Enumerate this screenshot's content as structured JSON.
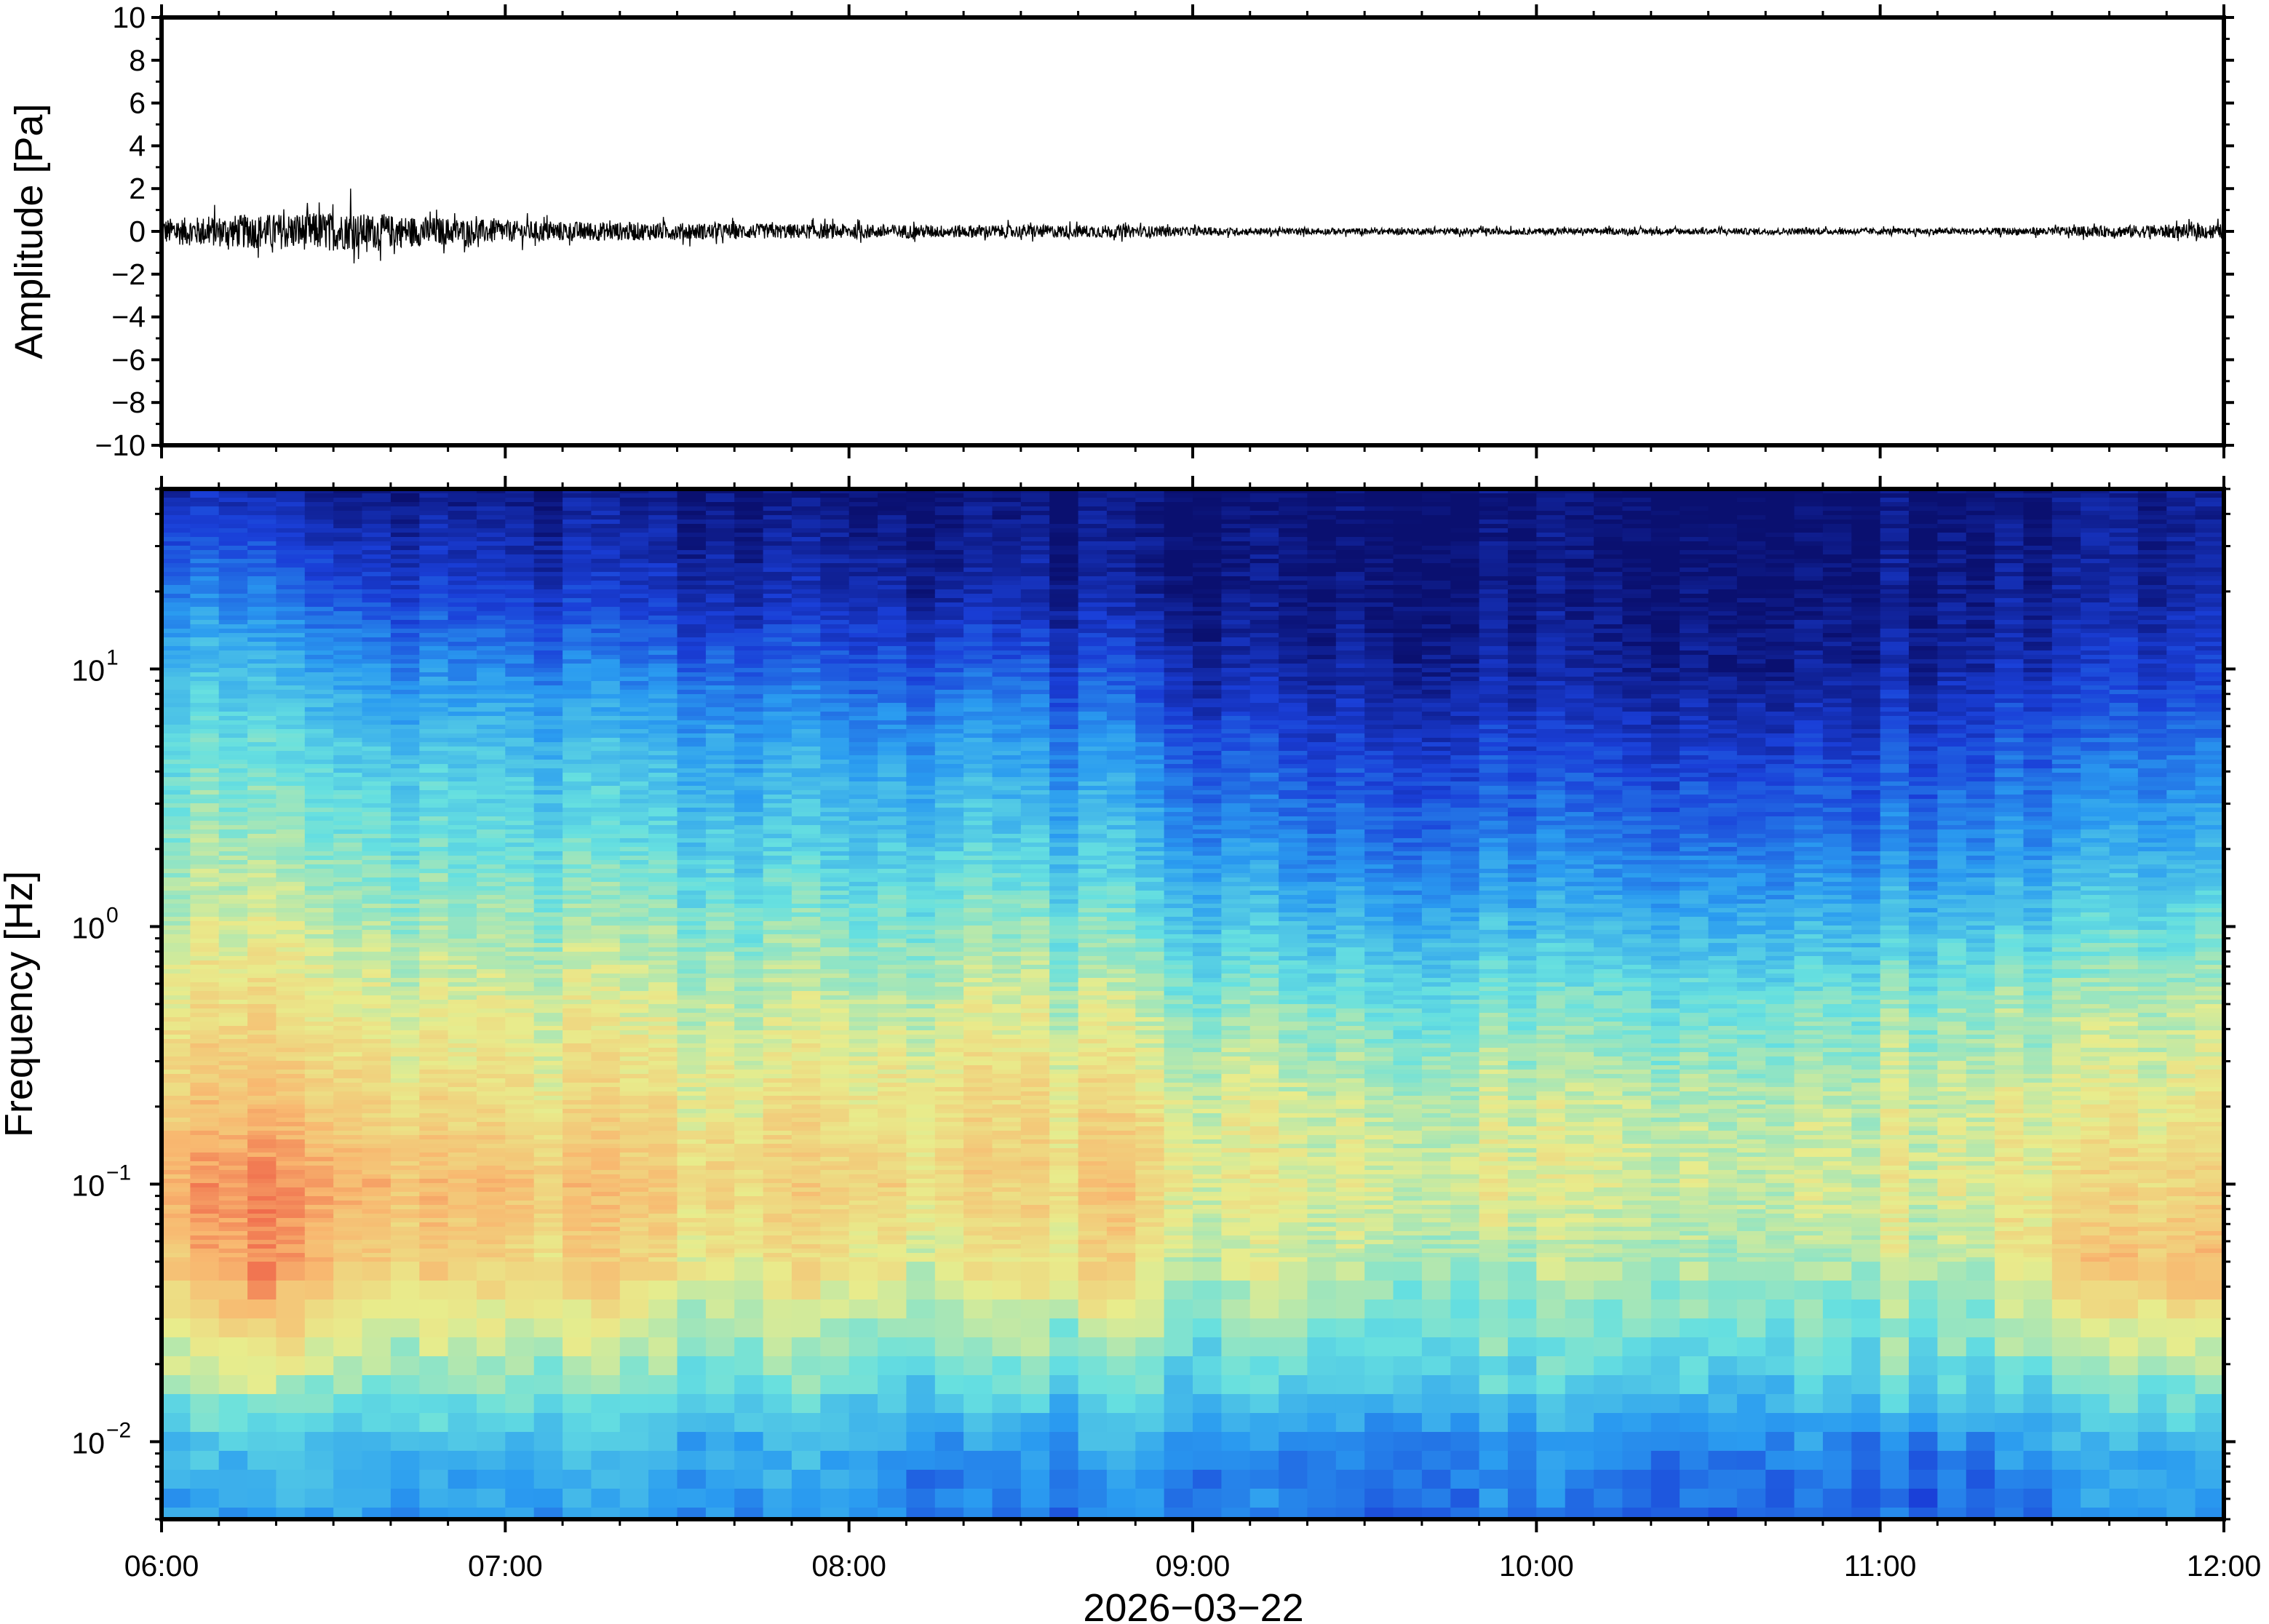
{
  "chart_data": [
    {
      "type": "line",
      "ylabel": "Amplitude [Pa]",
      "ylim": [
        -10,
        10
      ],
      "yticks": [
        {
          "value": 10,
          "label": "10"
        },
        {
          "value": 8,
          "label": "8"
        },
        {
          "value": 6,
          "label": "6"
        },
        {
          "value": 4,
          "label": "4"
        },
        {
          "value": 2,
          "label": "2"
        },
        {
          "value": 0,
          "label": "0"
        },
        {
          "value": -2,
          "label": "−2"
        },
        {
          "value": -4,
          "label": "−4"
        },
        {
          "value": -6,
          "label": "−6"
        },
        {
          "value": -8,
          "label": "−8"
        },
        {
          "value": -10,
          "label": "−10"
        }
      ],
      "x_range_hours": [
        6,
        12
      ],
      "series": [
        {
          "x_hours": [
            6.0,
            6.25,
            6.5,
            6.75,
            7.0,
            7.25,
            7.5,
            7.75,
            8.0,
            8.25,
            8.5,
            8.75,
            9.0,
            9.25,
            9.5,
            9.75,
            10.0,
            10.25,
            10.5,
            10.75,
            11.0,
            11.25,
            11.5,
            11.75,
            12.0
          ],
          "envelope_pa": [
            0.6,
            0.8,
            0.9,
            0.7,
            0.5,
            0.45,
            0.4,
            0.35,
            0.35,
            0.3,
            0.3,
            0.3,
            0.2,
            0.15,
            0.15,
            0.15,
            0.15,
            0.15,
            0.15,
            0.15,
            0.15,
            0.15,
            0.2,
            0.3,
            0.35
          ],
          "peak_pa": 2.0,
          "peak_x_hours": 6.55
        }
      ]
    },
    {
      "type": "heatmap",
      "ylabel": "Frequency [Hz]",
      "yscale": "log",
      "ylim": [
        0.005,
        50
      ],
      "yticks": [
        {
          "value": 10,
          "base": "10",
          "exp": "1"
        },
        {
          "value": 1,
          "base": "10",
          "exp": "0"
        },
        {
          "value": 0.1,
          "base": "10",
          "exp": "−1"
        },
        {
          "value": 0.01,
          "base": "10",
          "exp": "−2"
        }
      ],
      "colormap": "jet",
      "colormap_stops": [
        "#0a1070",
        "#1a3fd8",
        "#2a9bf0",
        "#66e0e0",
        "#e8ec8c",
        "#f8b870",
        "#ee5a44"
      ],
      "time_columns_hours": [
        6.0,
        6.25,
        6.5,
        6.75,
        7.0,
        7.25,
        7.5,
        7.75,
        8.0,
        8.25,
        8.5,
        8.75,
        9.0,
        9.25,
        9.5,
        9.75,
        10.0,
        10.25,
        10.5,
        10.75,
        11.0,
        11.25,
        11.5,
        11.75
      ],
      "frequency_rows_hz": [
        50,
        20,
        10,
        5,
        2,
        1,
        0.5,
        0.2,
        0.1,
        0.05,
        0.02,
        0.01,
        0.005
      ],
      "relative_power": [
        [
          0.1,
          0.3,
          0.42,
          0.5,
          0.57,
          0.63,
          0.7,
          0.78,
          0.86,
          0.8,
          0.62,
          0.4,
          0.35
        ],
        [
          0.08,
          0.25,
          0.38,
          0.48,
          0.56,
          0.63,
          0.7,
          0.78,
          0.9,
          0.88,
          0.62,
          0.4,
          0.32
        ],
        [
          0.05,
          0.2,
          0.35,
          0.45,
          0.54,
          0.61,
          0.68,
          0.76,
          0.85,
          0.78,
          0.58,
          0.42,
          0.35
        ],
        [
          0.05,
          0.18,
          0.32,
          0.44,
          0.52,
          0.6,
          0.66,
          0.74,
          0.82,
          0.76,
          0.56,
          0.4,
          0.33
        ],
        [
          0.04,
          0.15,
          0.3,
          0.42,
          0.5,
          0.58,
          0.65,
          0.72,
          0.8,
          0.72,
          0.56,
          0.38,
          0.32
        ],
        [
          0.03,
          0.13,
          0.28,
          0.4,
          0.49,
          0.57,
          0.64,
          0.72,
          0.78,
          0.74,
          0.55,
          0.4,
          0.33
        ],
        [
          0.03,
          0.12,
          0.26,
          0.38,
          0.47,
          0.56,
          0.63,
          0.7,
          0.76,
          0.7,
          0.55,
          0.38,
          0.32
        ],
        [
          0.02,
          0.1,
          0.24,
          0.36,
          0.45,
          0.55,
          0.62,
          0.7,
          0.74,
          0.7,
          0.54,
          0.38,
          0.32
        ],
        [
          0.02,
          0.1,
          0.22,
          0.34,
          0.44,
          0.54,
          0.62,
          0.7,
          0.76,
          0.68,
          0.52,
          0.36,
          0.3
        ],
        [
          0.01,
          0.08,
          0.22,
          0.36,
          0.46,
          0.56,
          0.64,
          0.72,
          0.74,
          0.66,
          0.5,
          0.32,
          0.26
        ],
        [
          0.01,
          0.07,
          0.2,
          0.32,
          0.44,
          0.54,
          0.63,
          0.72,
          0.74,
          0.68,
          0.5,
          0.3,
          0.24
        ],
        [
          0.01,
          0.06,
          0.18,
          0.3,
          0.42,
          0.52,
          0.62,
          0.72,
          0.78,
          0.72,
          0.52,
          0.34,
          0.28
        ],
        [
          0.0,
          0.03,
          0.1,
          0.22,
          0.34,
          0.45,
          0.56,
          0.66,
          0.68,
          0.62,
          0.48,
          0.32,
          0.28
        ],
        [
          0.0,
          0.02,
          0.08,
          0.18,
          0.3,
          0.42,
          0.54,
          0.64,
          0.66,
          0.62,
          0.48,
          0.3,
          0.26
        ],
        [
          0.0,
          0.02,
          0.07,
          0.16,
          0.28,
          0.4,
          0.52,
          0.62,
          0.66,
          0.6,
          0.46,
          0.28,
          0.24
        ],
        [
          0.0,
          0.02,
          0.07,
          0.16,
          0.28,
          0.4,
          0.52,
          0.62,
          0.66,
          0.58,
          0.48,
          0.3,
          0.26
        ],
        [
          0.0,
          0.02,
          0.06,
          0.16,
          0.28,
          0.4,
          0.52,
          0.62,
          0.64,
          0.58,
          0.46,
          0.3,
          0.26
        ],
        [
          0.0,
          0.02,
          0.06,
          0.16,
          0.28,
          0.4,
          0.52,
          0.62,
          0.64,
          0.58,
          0.48,
          0.28,
          0.18
        ],
        [
          0.0,
          0.03,
          0.07,
          0.17,
          0.29,
          0.41,
          0.53,
          0.62,
          0.64,
          0.6,
          0.48,
          0.3,
          0.25
        ],
        [
          0.0,
          0.03,
          0.08,
          0.18,
          0.3,
          0.42,
          0.54,
          0.63,
          0.66,
          0.6,
          0.48,
          0.32,
          0.26
        ],
        [
          0.01,
          0.04,
          0.08,
          0.18,
          0.3,
          0.43,
          0.55,
          0.64,
          0.66,
          0.62,
          0.5,
          0.28,
          0.22
        ],
        [
          0.01,
          0.04,
          0.1,
          0.2,
          0.32,
          0.44,
          0.56,
          0.64,
          0.66,
          0.62,
          0.5,
          0.3,
          0.2
        ],
        [
          0.02,
          0.05,
          0.12,
          0.22,
          0.34,
          0.46,
          0.57,
          0.65,
          0.7,
          0.76,
          0.52,
          0.34,
          0.28
        ],
        [
          0.02,
          0.06,
          0.14,
          0.24,
          0.36,
          0.48,
          0.58,
          0.66,
          0.72,
          0.78,
          0.54,
          0.36,
          0.3
        ]
      ]
    }
  ],
  "xaxis": {
    "ticks": [
      {
        "value": 6,
        "label": "06:00"
      },
      {
        "value": 7,
        "label": "07:00"
      },
      {
        "value": 8,
        "label": "08:00"
      },
      {
        "value": 9,
        "label": "09:00"
      },
      {
        "value": 10,
        "label": "10:00"
      },
      {
        "value": 11,
        "label": "11:00"
      },
      {
        "value": 12,
        "label": "12:00"
      }
    ],
    "date_label": "2026−03−22"
  }
}
